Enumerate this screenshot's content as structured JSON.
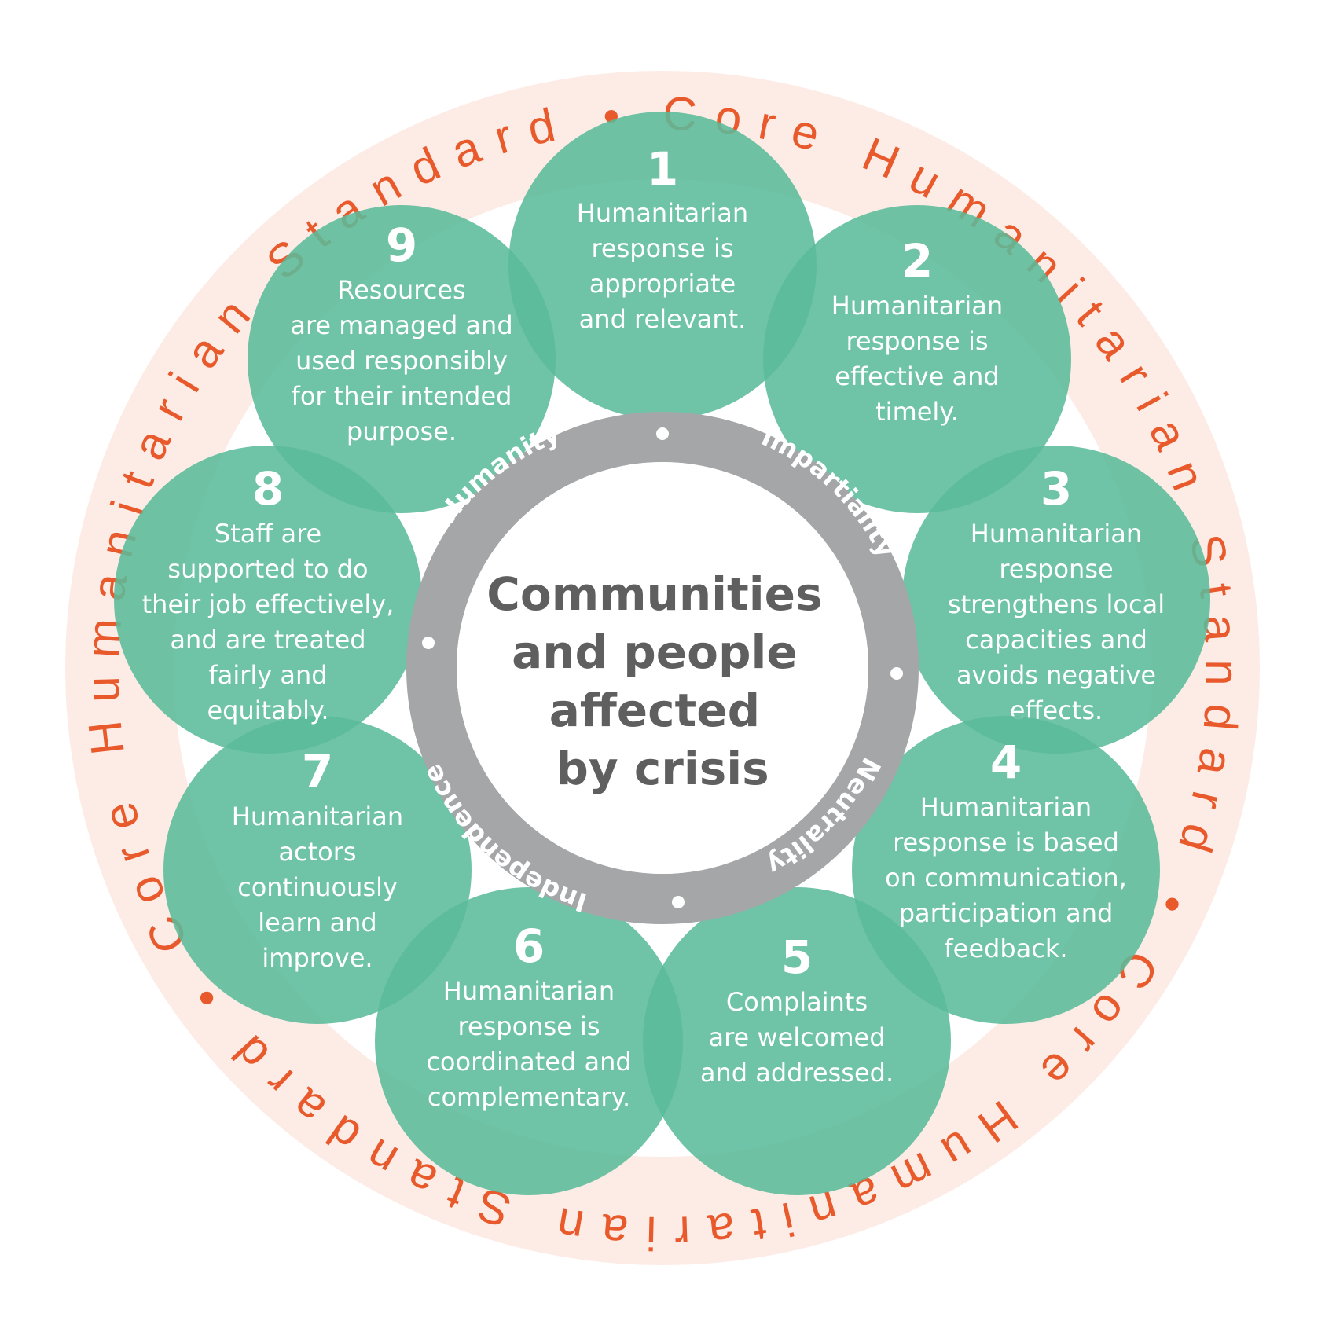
{
  "outer_ring": {
    "text": "Core Humanitarian Standard • Core Humanitarian Standard • Core Humanitarian Standard •"
  },
  "principles": [
    {
      "label": "Humanity"
    },
    {
      "label": "Impartiality"
    },
    {
      "label": "Neutrality"
    },
    {
      "label": "Independence"
    }
  ],
  "center": {
    "lines": [
      "Communities",
      "and people",
      "affected",
      "by crisis"
    ]
  },
  "commitments": [
    {
      "number": "1",
      "lines": [
        "Humanitarian",
        "response is",
        "appropriate",
        "and relevant."
      ]
    },
    {
      "number": "2",
      "lines": [
        "Humanitarian",
        "response is",
        "effective and",
        "timely."
      ]
    },
    {
      "number": "3",
      "lines": [
        "Humanitarian",
        "response",
        "strengthens local",
        "capacities and",
        "avoids negative",
        "effects."
      ]
    },
    {
      "number": "4",
      "lines": [
        "Humanitarian",
        "response is based",
        "on communication,",
        "participation and",
        "feedback."
      ]
    },
    {
      "number": "5",
      "lines": [
        "Complaints",
        "are welcomed",
        "and addressed."
      ]
    },
    {
      "number": "6",
      "lines": [
        "Humanitarian",
        "response is",
        "coordinated and",
        "complementary."
      ]
    },
    {
      "number": "7",
      "lines": [
        "Humanitarian",
        "actors",
        "continuously",
        "learn and",
        "improve."
      ]
    },
    {
      "number": "8",
      "lines": [
        "Staff are",
        "supported to do",
        "their job effectively,",
        "and are treated",
        "fairly and",
        "equitably."
      ]
    },
    {
      "number": "9",
      "lines": [
        "Resources",
        "are managed and",
        "used responsibly",
        "for their intended",
        "purpose."
      ]
    }
  ],
  "colors": {
    "outer_ring": "#fdece6",
    "ring_text": "#e85a2c",
    "circle": "#5bbb9a",
    "principle_ring": "#a5a6a8",
    "center_text": "#5f5f5f"
  }
}
